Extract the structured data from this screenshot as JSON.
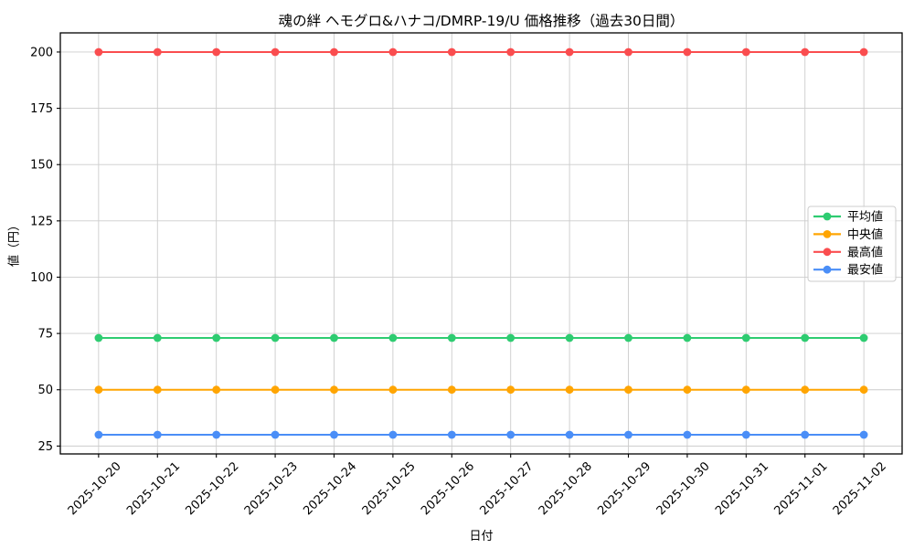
{
  "chart_data": {
    "type": "line",
    "title": "魂の絆 ヘモグロ&ハナコ/DMRP-19/U 価格推移（過去30日間）",
    "xlabel": "日付",
    "ylabel": "値（円）",
    "x": [
      "2025-10-20",
      "2025-10-21",
      "2025-10-22",
      "2025-10-23",
      "2025-10-24",
      "2025-10-25",
      "2025-10-26",
      "2025-10-27",
      "2025-10-28",
      "2025-10-29",
      "2025-10-30",
      "2025-10-31",
      "2025-11-01",
      "2025-11-02"
    ],
    "series": [
      {
        "name": "平均値",
        "color": "#2ecc71",
        "values": [
          73,
          73,
          73,
          73,
          73,
          73,
          73,
          73,
          73,
          73,
          73,
          73,
          73,
          73
        ]
      },
      {
        "name": "中央値",
        "color": "#ffa502",
        "values": [
          50,
          50,
          50,
          50,
          50,
          50,
          50,
          50,
          50,
          50,
          50,
          50,
          50,
          50
        ]
      },
      {
        "name": "最高値",
        "color": "#fa4d4f",
        "values": [
          200,
          200,
          200,
          200,
          200,
          200,
          200,
          200,
          200,
          200,
          200,
          200,
          200,
          200
        ]
      },
      {
        "name": "最安値",
        "color": "#4a8ef7",
        "values": [
          30,
          30,
          30,
          30,
          30,
          30,
          30,
          30,
          30,
          30,
          30,
          30,
          30,
          30
        ]
      }
    ],
    "yticks": [
      25,
      50,
      75,
      100,
      125,
      150,
      175,
      200
    ],
    "ylim": [
      21.5,
      208.5
    ],
    "grid": true,
    "grid_color": "#cccccc",
    "axis_color": "#000000",
    "legend_position": "center right",
    "legend_labels": [
      "平均値",
      "中央値",
      "最高値",
      "最安値"
    ]
  }
}
